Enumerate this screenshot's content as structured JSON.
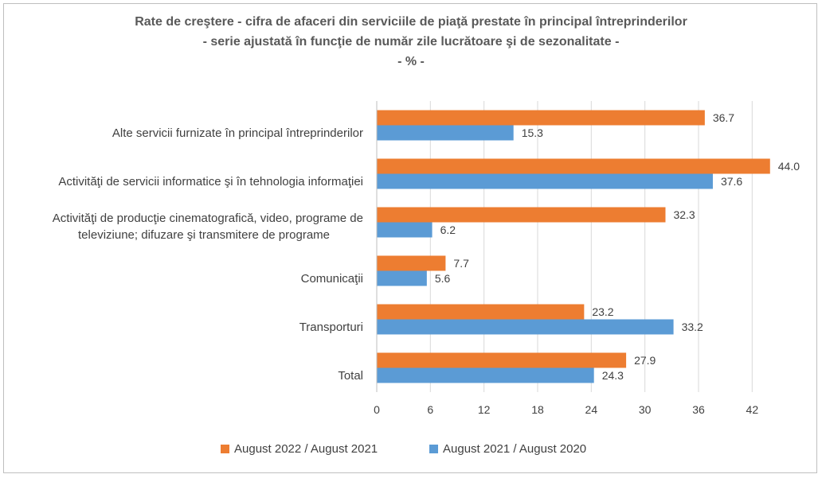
{
  "chart_data": {
    "type": "bar",
    "orientation": "horizontal",
    "title": "Rate de creştere - cifra de afaceri din serviciile de piaţă prestate în principal întreprinderilor",
    "subtitle": "- serie ajustată în funcţie de număr zile lucrătoare şi de sezonalitate -",
    "unit": "- % -",
    "categories": [
      "Alte servicii furnizate în principal întreprinderilor",
      "Activităţi de servicii informatice şi  în tehnologia informaţiei",
      "Activităţi de producţie cinematografică, video, programe de televiziune; difuzare şi transmitere de programe",
      "Comunicaţii",
      "Transporturi",
      "Total"
    ],
    "category_lines": [
      [
        "Alte servicii furnizate în principal întreprinderilor"
      ],
      [
        "Activităţi de servicii informatice şi  în tehnologia informaţiei"
      ],
      [
        "Activităţi de producţie cinematografică, video, programe de",
        "televiziune; difuzare şi transmitere de programe"
      ],
      [
        "Comunicaţii"
      ],
      [
        "Transporturi"
      ],
      [
        "Total"
      ]
    ],
    "series": [
      {
        "name": "August  2022 / August  2021",
        "color": "#ed7d31",
        "values": [
          36.7,
          44.0,
          32.3,
          7.7,
          23.2,
          27.9
        ]
      },
      {
        "name": "August 2021 / August  2020",
        "color": "#5b9bd5",
        "values": [
          15.3,
          37.6,
          6.2,
          5.6,
          33.2,
          24.3
        ]
      }
    ],
    "xlim": [
      0,
      45
    ],
    "xticks": [
      "0",
      "6",
      "12",
      "18",
      "24",
      "30",
      "36",
      "42"
    ],
    "grid": "vertical",
    "legend_position": "bottom"
  }
}
